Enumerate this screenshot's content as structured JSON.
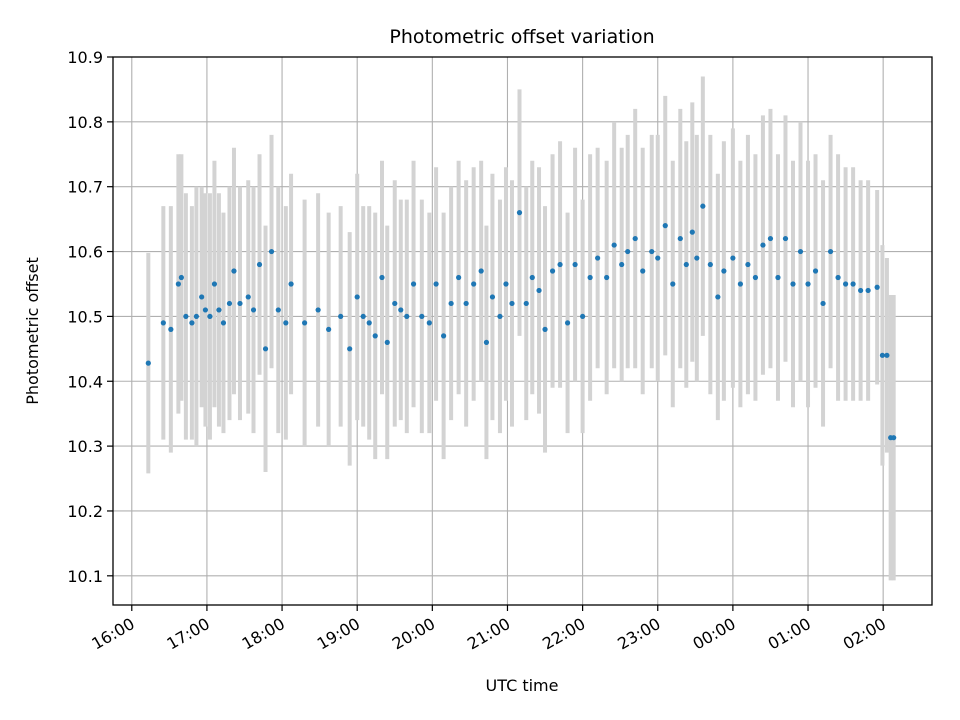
{
  "chart_data": {
    "type": "scatter",
    "title": "Photometric offset variation",
    "xlabel": "UTC time",
    "ylabel": "Photometric offset",
    "grid": true,
    "xlim": [
      15.75,
      26.65
    ],
    "ylim": [
      10.055,
      10.9
    ],
    "x_ticks": [
      16,
      17,
      18,
      19,
      20,
      21,
      22,
      23,
      24,
      25,
      26
    ],
    "x_tick_labels": [
      "16:00",
      "17:00",
      "18:00",
      "19:00",
      "20:00",
      "21:00",
      "22:00",
      "23:00",
      "00:00",
      "01:00",
      "02:00"
    ],
    "y_ticks": [
      10.1,
      10.2,
      10.3,
      10.4,
      10.5,
      10.6,
      10.7,
      10.8,
      10.9
    ],
    "y_tick_labels": [
      "10.1",
      "10.2",
      "10.3",
      "10.4",
      "10.5",
      "10.6",
      "10.7",
      "10.8",
      "10.9"
    ],
    "colors": {
      "points": "#1f77b4",
      "errorbars": "#d3d3d3",
      "grid": "#b0b0b0",
      "axes": "#000000"
    },
    "series": [
      {
        "name": "Photometric offset",
        "points": [
          [
            16.22,
            10.428,
            0.17
          ],
          [
            16.42,
            10.49,
            0.18
          ],
          [
            16.52,
            10.48,
            0.19
          ],
          [
            16.62,
            10.55,
            0.2
          ],
          [
            16.66,
            10.56,
            0.19
          ],
          [
            16.72,
            10.5,
            0.19
          ],
          [
            16.8,
            10.49,
            0.18
          ],
          [
            16.86,
            10.5,
            0.2
          ],
          [
            16.93,
            10.53,
            0.17
          ],
          [
            16.98,
            10.51,
            0.18
          ],
          [
            17.04,
            10.5,
            0.19
          ],
          [
            17.1,
            10.55,
            0.19
          ],
          [
            17.16,
            10.51,
            0.18
          ],
          [
            17.22,
            10.49,
            0.17
          ],
          [
            17.3,
            10.52,
            0.18
          ],
          [
            17.36,
            10.57,
            0.19
          ],
          [
            17.44,
            10.52,
            0.18
          ],
          [
            17.55,
            10.53,
            0.18
          ],
          [
            17.62,
            10.51,
            0.19
          ],
          [
            17.7,
            10.58,
            0.17
          ],
          [
            17.78,
            10.45,
            0.19
          ],
          [
            17.86,
            10.6,
            0.18
          ],
          [
            17.95,
            10.51,
            0.19
          ],
          [
            18.05,
            10.49,
            0.18
          ],
          [
            18.12,
            10.55,
            0.17
          ],
          [
            18.3,
            10.49,
            0.19
          ],
          [
            18.48,
            10.51,
            0.18
          ],
          [
            18.62,
            10.48,
            0.18
          ],
          [
            18.78,
            10.5,
            0.17
          ],
          [
            18.9,
            10.45,
            0.18
          ],
          [
            19.0,
            10.53,
            0.19
          ],
          [
            19.08,
            10.5,
            0.17
          ],
          [
            19.16,
            10.49,
            0.18
          ],
          [
            19.24,
            10.47,
            0.19
          ],
          [
            19.33,
            10.56,
            0.18
          ],
          [
            19.4,
            10.46,
            0.18
          ],
          [
            19.5,
            10.52,
            0.19
          ],
          [
            19.58,
            10.51,
            0.17
          ],
          [
            19.66,
            10.5,
            0.18
          ],
          [
            19.75,
            10.55,
            0.19
          ],
          [
            19.86,
            10.5,
            0.18
          ],
          [
            19.96,
            10.49,
            0.17
          ],
          [
            20.05,
            10.55,
            0.18
          ],
          [
            20.15,
            10.47,
            0.19
          ],
          [
            20.25,
            10.52,
            0.18
          ],
          [
            20.35,
            10.56,
            0.18
          ],
          [
            20.45,
            10.52,
            0.19
          ],
          [
            20.55,
            10.55,
            0.18
          ],
          [
            20.65,
            10.57,
            0.17
          ],
          [
            20.72,
            10.46,
            0.18
          ],
          [
            20.8,
            10.53,
            0.19
          ],
          [
            20.9,
            10.5,
            0.18
          ],
          [
            20.98,
            10.55,
            0.18
          ],
          [
            21.06,
            10.52,
            0.19
          ],
          [
            21.16,
            10.66,
            0.19
          ],
          [
            21.25,
            10.52,
            0.18
          ],
          [
            21.33,
            10.56,
            0.18
          ],
          [
            21.42,
            10.54,
            0.19
          ],
          [
            21.5,
            10.48,
            0.19
          ],
          [
            21.6,
            10.57,
            0.18
          ],
          [
            21.7,
            10.58,
            0.19
          ],
          [
            21.8,
            10.49,
            0.17
          ],
          [
            21.9,
            10.58,
            0.18
          ],
          [
            22.0,
            10.5,
            0.18
          ],
          [
            22.1,
            10.56,
            0.19
          ],
          [
            22.2,
            10.59,
            0.17
          ],
          [
            22.32,
            10.56,
            0.18
          ],
          [
            22.42,
            10.61,
            0.19
          ],
          [
            22.52,
            10.58,
            0.18
          ],
          [
            22.6,
            10.6,
            0.18
          ],
          [
            22.7,
            10.62,
            0.2
          ],
          [
            22.8,
            10.57,
            0.19
          ],
          [
            22.92,
            10.6,
            0.18
          ],
          [
            23.0,
            10.59,
            0.19
          ],
          [
            23.1,
            10.64,
            0.2
          ],
          [
            23.2,
            10.55,
            0.19
          ],
          [
            23.3,
            10.62,
            0.2
          ],
          [
            23.38,
            10.58,
            0.19
          ],
          [
            23.46,
            10.63,
            0.2
          ],
          [
            23.52,
            10.59,
            0.19
          ],
          [
            23.6,
            10.67,
            0.2
          ],
          [
            23.7,
            10.58,
            0.2
          ],
          [
            23.8,
            10.53,
            0.19
          ],
          [
            23.88,
            10.57,
            0.2
          ],
          [
            24.0,
            10.59,
            0.2
          ],
          [
            24.1,
            10.55,
            0.19
          ],
          [
            24.2,
            10.58,
            0.2
          ],
          [
            24.3,
            10.56,
            0.19
          ],
          [
            24.4,
            10.61,
            0.2
          ],
          [
            24.5,
            10.62,
            0.2
          ],
          [
            24.6,
            10.56,
            0.19
          ],
          [
            24.7,
            10.62,
            0.19
          ],
          [
            24.8,
            10.55,
            0.19
          ],
          [
            24.9,
            10.6,
            0.2
          ],
          [
            25.0,
            10.55,
            0.19
          ],
          [
            25.1,
            10.57,
            0.18
          ],
          [
            25.2,
            10.52,
            0.19
          ],
          [
            25.3,
            10.6,
            0.18
          ],
          [
            25.4,
            10.56,
            0.19
          ],
          [
            25.5,
            10.55,
            0.18
          ],
          [
            25.6,
            10.55,
            0.18
          ],
          [
            25.7,
            10.54,
            0.17
          ],
          [
            25.8,
            10.54,
            0.17
          ],
          [
            25.92,
            10.545,
            0.15
          ],
          [
            25.99,
            10.44,
            0.17
          ],
          [
            26.05,
            10.44,
            0.15
          ],
          [
            26.1,
            10.313,
            0.22
          ],
          [
            26.14,
            10.313,
            0.22
          ]
        ]
      }
    ]
  }
}
